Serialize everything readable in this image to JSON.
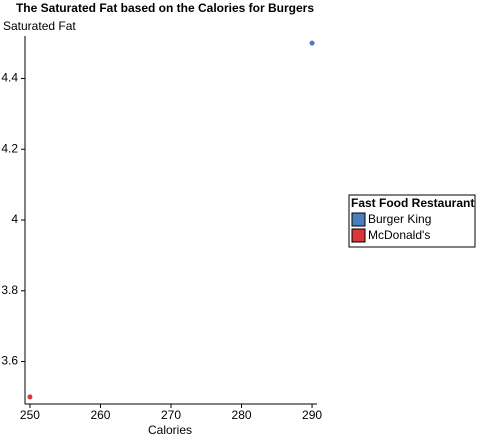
{
  "chart_data": {
    "type": "scatter",
    "title": "The Saturated Fat based on the Calories for Burgers",
    "x_label": "Calories",
    "y_label": "Saturated Fat",
    "legend_title": "Fast Food Restaurant",
    "legend_position": "right",
    "xlim": [
      249.3,
      290.7
    ],
    "xticks": [
      250,
      260,
      270,
      280,
      290
    ],
    "ylim": [
      3.48,
      4.52
    ],
    "yticks": [
      3.6,
      3.8,
      4,
      4.2,
      4.4
    ],
    "grid": false,
    "series": [
      {
        "name": "Burger King",
        "color": "#4a7ebb",
        "x": [
          290
        ],
        "values": [
          4.5
        ]
      },
      {
        "name": "McDonald's",
        "color": "#d9373a",
        "x": [
          250
        ],
        "values": [
          3.5
        ]
      }
    ]
  }
}
